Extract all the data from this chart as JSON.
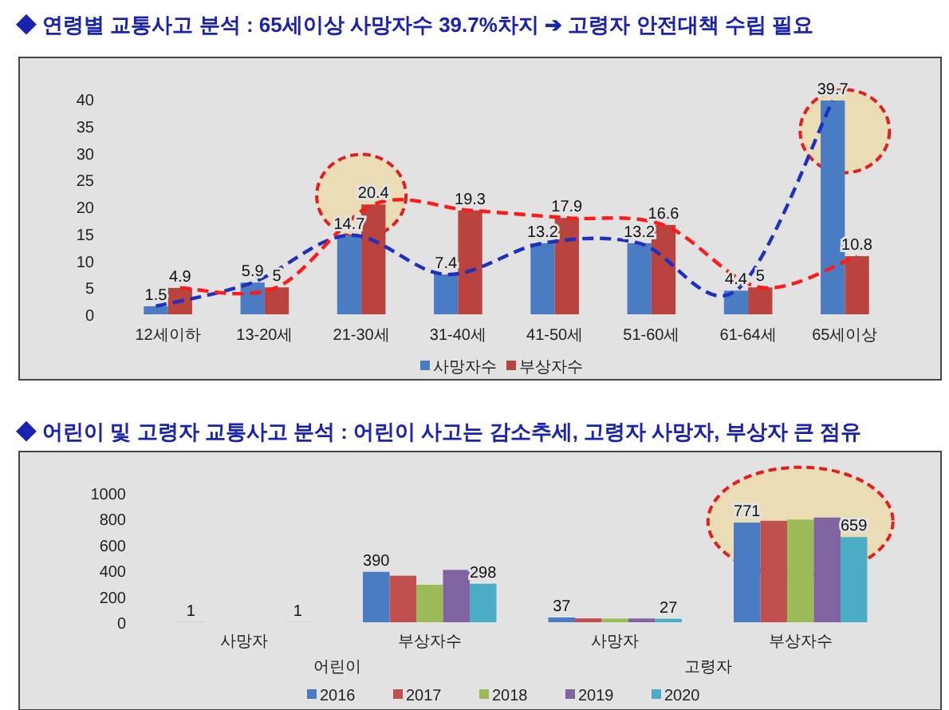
{
  "chart_data": [
    {
      "type": "bar",
      "title": "◆ 연령별 교통사고 분석 : 65세이상 사망자수 39.7%차지 ➔ 고령자 안전대책 수립 필요",
      "categories": [
        "12세이하",
        "13-20세",
        "21-30세",
        "31-40세",
        "41-50세",
        "51-60세",
        "61-64세",
        "65세이상"
      ],
      "series": [
        {
          "name": "사망자수",
          "color": "#4a7cc4",
          "values": [
            1.5,
            5.9,
            14.7,
            7.4,
            13.2,
            13.2,
            4.4,
            39.7
          ],
          "value_labels": [
            "1.5",
            "5.9",
            "14.7",
            "7.4",
            "13.2",
            "13.2",
            "4.4",
            "39.7"
          ]
        },
        {
          "name": "부상자수",
          "color": "#b8433f",
          "values": [
            4.9,
            5,
            20.4,
            19.3,
            17.9,
            16.6,
            5,
            10.8
          ],
          "value_labels": [
            "4.9",
            "5",
            "20.4",
            "19.3",
            "17.9",
            "16.6",
            "5",
            "10.8"
          ]
        },
        {
          "type": "line",
          "color": "#1f2fc0",
          "line_style": "dashed",
          "values": [
            1.5,
            5.9,
            14.7,
            7.4,
            13.2,
            13.2,
            4.4,
            39.7
          ]
        },
        {
          "type": "line",
          "color": "#ff1a1a",
          "line_style": "dashed",
          "values": [
            4.9,
            5,
            20.4,
            19.3,
            17.9,
            16.6,
            5,
            10.8
          ]
        }
      ],
      "ylim": [
        0,
        40
      ],
      "yticks": [
        0,
        5,
        10,
        15,
        20,
        25,
        30,
        35,
        40
      ],
      "grid": false,
      "legend": "bottom"
    },
    {
      "type": "bar",
      "title": "◆ 어린이 및 고령자 교통사고 분석 : 어린이 사고는 감소추세, 고령자 사망자, 부상자 큰 점유",
      "categories": [
        "사망자",
        "부상자수",
        "사망자",
        "부상자수"
      ],
      "series": [
        {
          "name": "2016",
          "color": "#4a7cc4",
          "values": [
            1,
            390,
            37,
            771
          ],
          "value_labels": [
            "1",
            "390",
            "37",
            "771"
          ]
        },
        {
          "name": "2017",
          "color": "#c0504d",
          "values": [
            null,
            360,
            30,
            785
          ],
          "value_labels": [
            null,
            null,
            null,
            null
          ]
        },
        {
          "name": "2018",
          "color": "#9bbb59",
          "values": [
            null,
            290,
            28,
            795
          ],
          "value_labels": [
            null,
            null,
            null,
            null
          ]
        },
        {
          "name": "2019",
          "color": "#8064a2",
          "values": [
            null,
            405,
            29,
            810
          ],
          "value_labels": [
            null,
            null,
            null,
            null
          ]
        },
        {
          "name": "2020",
          "color": "#4bacc6",
          "values": [
            1,
            298,
            27,
            659
          ],
          "value_labels": [
            "1",
            "298",
            "27",
            "659"
          ]
        }
      ],
      "annotations": [
        "어린이",
        "고령자"
      ],
      "ylim": [
        0,
        1000
      ],
      "yticks": [
        0,
        200,
        400,
        600,
        800,
        1000
      ],
      "grid": false,
      "legend": "bottom"
    }
  ]
}
